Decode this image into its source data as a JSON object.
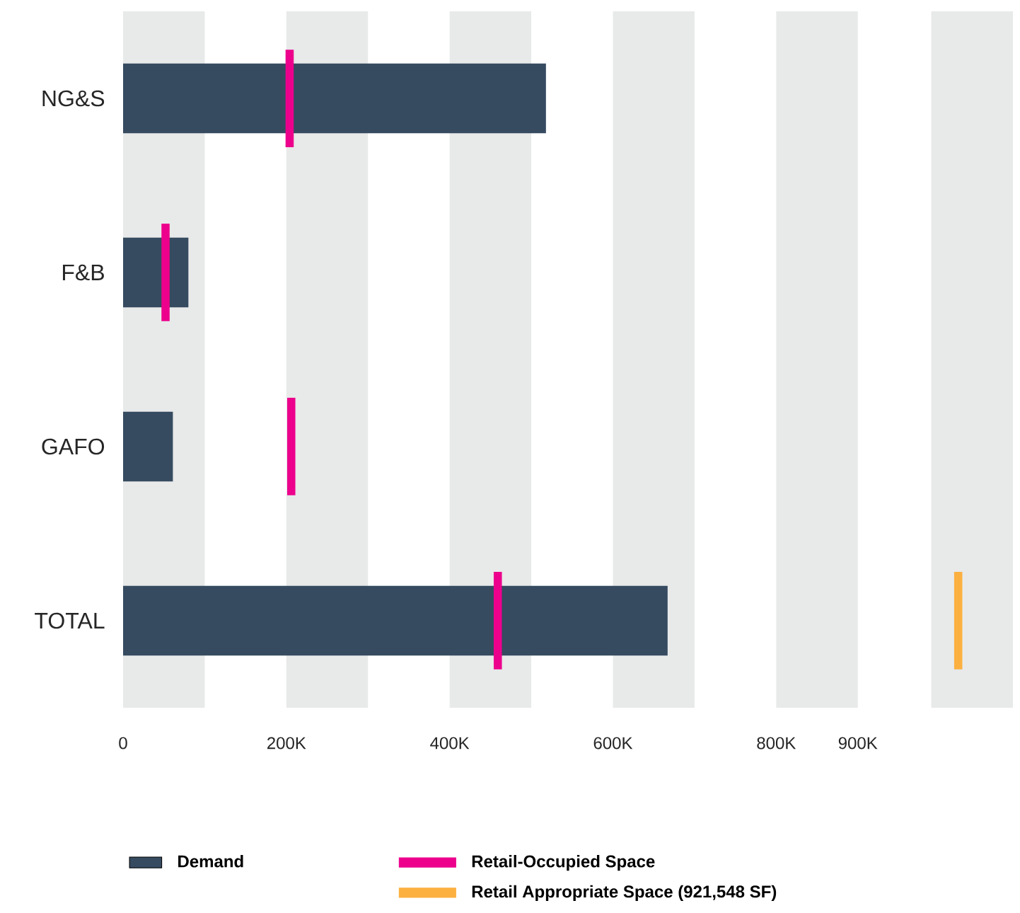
{
  "chart_data": {
    "type": "bar",
    "orientation": "horizontal",
    "categories": [
      "NG&S",
      "F&B",
      "GAFO",
      "TOTAL"
    ],
    "series": [
      {
        "name": "Demand",
        "color": "#364b60",
        "values": [
          518000,
          80000,
          61000,
          667000
        ]
      },
      {
        "name": "Retail-Occupied Space",
        "color": "#ec008c",
        "base": [
          199000,
          47000,
          201000,
          454000
        ],
        "values": [
          10000,
          10000,
          10000,
          10000
        ]
      },
      {
        "name": "Retail Appropriate Space (921,548 SF)",
        "color": "#fbb040",
        "base": [
          null,
          null,
          null,
          1018000
        ],
        "values": [
          null,
          null,
          null,
          10000
        ]
      }
    ],
    "xlim": [
      0,
      1090000
    ],
    "xticks": [
      {
        "value": 0,
        "label": "0"
      },
      {
        "value": 200000,
        "label": "200K"
      },
      {
        "value": 400000,
        "label": "400K"
      },
      {
        "value": 600000,
        "label": "600K"
      },
      {
        "value": 800000,
        "label": "800K"
      },
      {
        "value": 900000,
        "label": "900K"
      }
    ],
    "bands": [
      {
        "axis": "x",
        "from": 0,
        "to": 100000,
        "color": "#e8e9e9"
      },
      {
        "axis": "x",
        "from": 200000,
        "to": 300000,
        "color": "#e8e9e9"
      },
      {
        "axis": "x",
        "from": 400000,
        "to": 500000,
        "color": "#e8e9e9"
      },
      {
        "axis": "x",
        "from": 600000,
        "to": 700000,
        "color": "#e8e9e9"
      },
      {
        "axis": "x",
        "from": 800000,
        "to": 900000,
        "color": "#e8e9e9"
      },
      {
        "axis": "x",
        "from": 990000,
        "to": 1090000,
        "color": "#e8e9e9"
      }
    ],
    "legend": "bottom left"
  }
}
